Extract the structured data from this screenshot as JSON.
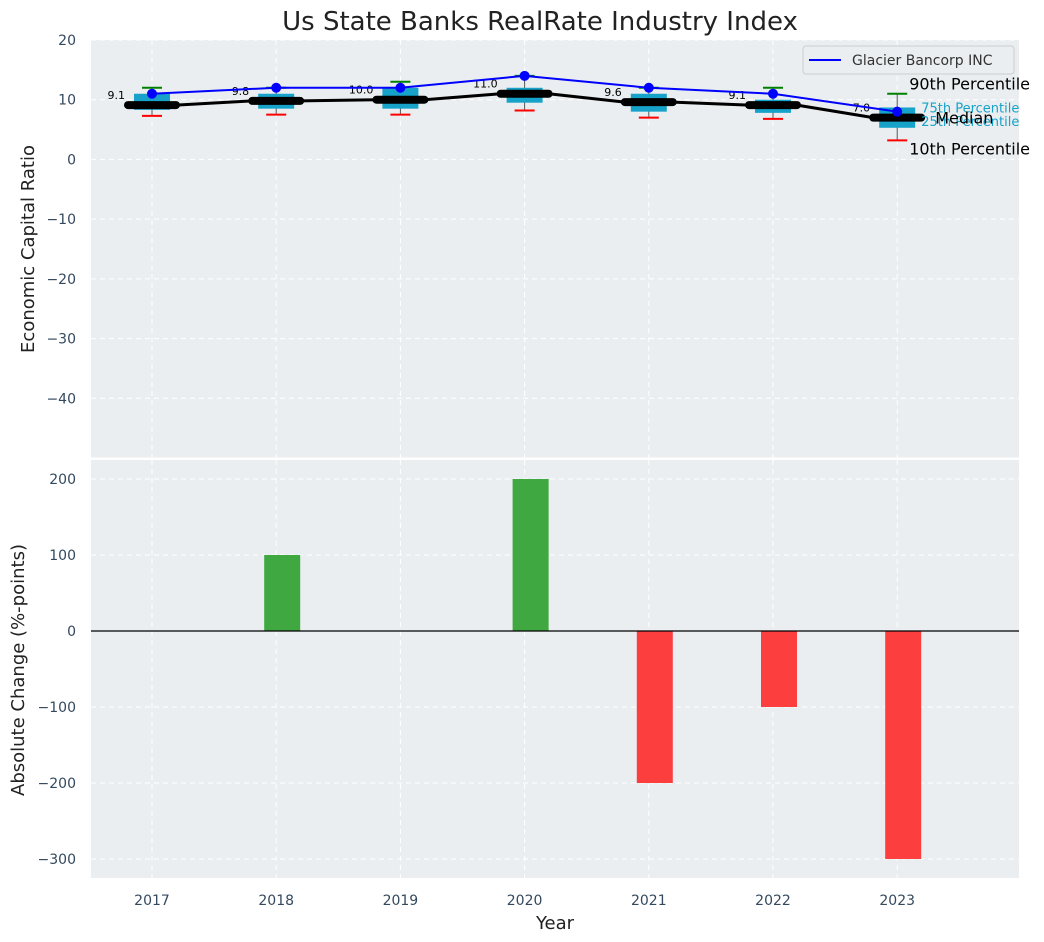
{
  "chart_data": [
    {
      "type": "box_line",
      "title": "Us State Banks RealRate Industry Index",
      "ylabel": "Economic Capital Ratio",
      "xlabel": "",
      "ylim": [
        -50,
        20
      ],
      "yticks": [
        20,
        10,
        0,
        -10,
        -20,
        -30,
        -40
      ],
      "ytick_labels": [
        "20",
        "10",
        "0",
        "−10",
        "−20",
        "−30",
        "−40"
      ],
      "categories": [
        "2017",
        "2018",
        "2019",
        "2020",
        "2021",
        "2022",
        "2023"
      ],
      "median": [
        9.1,
        9.8,
        10.0,
        11.0,
        9.6,
        9.1,
        7.0
      ],
      "median_labels": [
        "9.1",
        "9.8",
        "10.0",
        "11.0",
        "9.6",
        "9.1",
        "7.0"
      ],
      "q1": [
        8.3,
        8.5,
        8.5,
        9.5,
        8.0,
        7.8,
        5.3
      ],
      "q3": [
        11.0,
        11.0,
        12.0,
        12.0,
        11.0,
        10.0,
        8.7
      ],
      "p10": [
        7.3,
        7.5,
        7.5,
        8.2,
        7.0,
        6.8,
        3.2
      ],
      "p90": [
        12.0,
        12.0,
        13.0,
        14.0,
        12.0,
        12.0,
        11.0
      ],
      "series": [
        {
          "name": "Glacier Bancorp INC",
          "values": [
            11,
            12,
            12,
            14,
            12,
            11,
            8
          ]
        }
      ],
      "legend": {
        "position": "top-right",
        "entries": [
          "Glacier Bancorp INC"
        ]
      },
      "annotations": {
        "p90": "90th Percentile",
        "p75": "75th Percentile",
        "median": "Median",
        "p25": "25th Percentile",
        "p10": "10th Percentile"
      }
    },
    {
      "type": "bar",
      "title": "",
      "ylabel": "Absolute Change (%-points)",
      "xlabel": "Year",
      "ylim": [
        -325,
        225
      ],
      "yticks": [
        200,
        100,
        0,
        -100,
        -200,
        -300
      ],
      "ytick_labels": [
        "200",
        "100",
        "0",
        "−100",
        "−200",
        "−300"
      ],
      "categories": [
        "2017",
        "2018",
        "2019",
        "2020",
        "2021",
        "2022",
        "2023"
      ],
      "values": [
        0,
        100,
        0,
        200,
        -200,
        -100,
        -300
      ]
    }
  ],
  "colors": {
    "box": "#17a2c9",
    "median": "#000000",
    "company_line": "#0000ff",
    "whisker_high": "#008000",
    "whisker_low": "#ff0000",
    "bar_positive": "#2ca02c",
    "bar_negative": "#ff2a2a"
  }
}
